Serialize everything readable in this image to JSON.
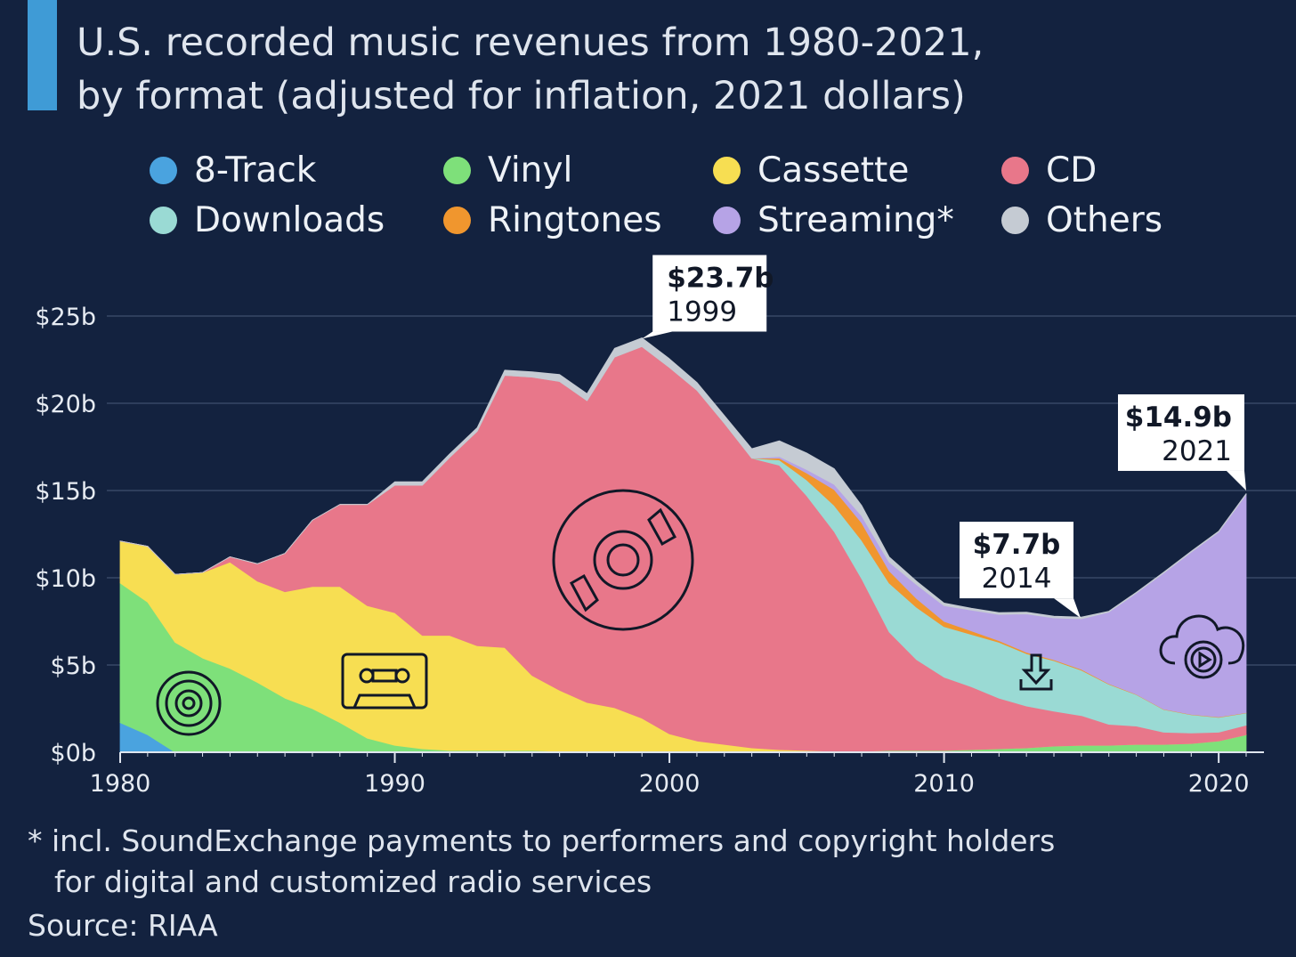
{
  "title": {
    "line1": "U.S. recorded music revenues from 1980-2021,",
    "line2": "by format (adjusted for inflation, 2021 dollars)"
  },
  "legend": [
    {
      "label": "8-Track",
      "color": "#4aa3df"
    },
    {
      "label": "Vinyl",
      "color": "#7ee07a"
    },
    {
      "label": "Cassette",
      "color": "#f7de52"
    },
    {
      "label": "CD",
      "color": "#e8778a"
    },
    {
      "label": "Downloads",
      "color": "#9adad4"
    },
    {
      "label": "Ringtones",
      "color": "#f0962e"
    },
    {
      "label": "Streaming*",
      "color": "#b6a3e6"
    },
    {
      "label": "Others",
      "color": "#c5cbd3"
    }
  ],
  "footnote": {
    "line1": "* incl. SoundExchange payments to performers and copyright holders",
    "line2": "for digital and customized radio services"
  },
  "source": "Source: RIAA",
  "chart_data": {
    "type": "area",
    "stacked": true,
    "x": [
      1980,
      1981,
      1982,
      1983,
      1984,
      1985,
      1986,
      1987,
      1988,
      1989,
      1990,
      1991,
      1992,
      1993,
      1994,
      1995,
      1996,
      1997,
      1998,
      1999,
      2000,
      2001,
      2002,
      2003,
      2004,
      2005,
      2006,
      2007,
      2008,
      2009,
      2010,
      2011,
      2012,
      2013,
      2014,
      2015,
      2016,
      2017,
      2018,
      2019,
      2020,
      2021
    ],
    "xticks": [
      "1980",
      "1990",
      "2000",
      "2010",
      "2020"
    ],
    "yticks": [
      "$0b",
      "$5b",
      "$10b",
      "$15b",
      "$20b",
      "$25b"
    ],
    "ylim": [
      0,
      25
    ],
    "grid": true,
    "legend_position": "top",
    "series": [
      {
        "name": "8-Track",
        "color": "#4aa3df",
        "values": [
          1.7,
          1.0,
          0,
          0,
          0,
          0,
          0,
          0,
          0,
          0,
          0,
          0,
          0,
          0,
          0,
          0,
          0,
          0,
          0,
          0,
          0,
          0,
          0,
          0,
          0,
          0,
          0,
          0,
          0,
          0,
          0,
          0,
          0,
          0,
          0,
          0,
          0,
          0,
          0,
          0,
          0,
          0
        ]
      },
      {
        "name": "Vinyl",
        "color": "#7ee07a",
        "values": [
          8.0,
          7.6,
          6.3,
          5.4,
          4.8,
          4.0,
          3.1,
          2.5,
          1.7,
          0.8,
          0.4,
          0.2,
          0.1,
          0.1,
          0.1,
          0.1,
          0.05,
          0.05,
          0.05,
          0.05,
          0.05,
          0.05,
          0.05,
          0.05,
          0.05,
          0.05,
          0.05,
          0.05,
          0.1,
          0.1,
          0.1,
          0.15,
          0.2,
          0.25,
          0.35,
          0.4,
          0.4,
          0.45,
          0.45,
          0.5,
          0.65,
          1.0
        ]
      },
      {
        "name": "Cassette",
        "color": "#f7de52",
        "values": [
          2.4,
          3.2,
          3.9,
          4.9,
          6.1,
          5.8,
          6.1,
          7.0,
          7.8,
          7.6,
          7.6,
          6.5,
          6.6,
          6.0,
          5.9,
          4.3,
          3.5,
          2.8,
          2.5,
          1.9,
          1.0,
          0.6,
          0.4,
          0.2,
          0.1,
          0.05,
          0,
          0,
          0,
          0,
          0,
          0,
          0,
          0,
          0,
          0,
          0,
          0,
          0,
          0,
          0,
          0
        ]
      },
      {
        "name": "CD",
        "color": "#e8778a",
        "values": [
          0,
          0,
          0,
          0,
          0.3,
          1.0,
          2.2,
          3.8,
          4.7,
          5.8,
          7.3,
          8.6,
          10.2,
          12.3,
          15.6,
          17.1,
          17.7,
          17.3,
          20.1,
          21.3,
          21.0,
          20.1,
          18.4,
          16.6,
          16.3,
          14.6,
          12.6,
          9.9,
          6.8,
          5.2,
          4.2,
          3.6,
          2.9,
          2.4,
          2.0,
          1.7,
          1.2,
          1.05,
          0.7,
          0.6,
          0.5,
          0.55
        ]
      },
      {
        "name": "Downloads",
        "color": "#9adad4",
        "values": [
          0,
          0,
          0,
          0,
          0,
          0,
          0,
          0,
          0,
          0,
          0,
          0,
          0,
          0,
          0,
          0,
          0,
          0,
          0,
          0,
          0,
          0,
          0,
          0,
          0.3,
          0.9,
          1.5,
          2.2,
          2.8,
          3.0,
          2.9,
          3.0,
          3.2,
          3.0,
          2.9,
          2.6,
          2.3,
          1.8,
          1.3,
          1.05,
          0.85,
          0.7
        ]
      },
      {
        "name": "Ringtones",
        "color": "#f0962e",
        "values": [
          0,
          0,
          0,
          0,
          0,
          0,
          0,
          0,
          0,
          0,
          0,
          0,
          0,
          0,
          0,
          0,
          0,
          0,
          0,
          0,
          0,
          0,
          0,
          0,
          0.1,
          0.4,
          0.9,
          1.0,
          0.7,
          0.5,
          0.3,
          0.2,
          0.1,
          0.08,
          0.05,
          0.05,
          0.03,
          0.02,
          0.02,
          0.02,
          0.02,
          0.02
        ]
      },
      {
        "name": "Streaming*",
        "color": "#b6a3e6",
        "values": [
          0,
          0,
          0,
          0,
          0,
          0,
          0,
          0,
          0,
          0,
          0,
          0,
          0,
          0,
          0,
          0,
          0,
          0,
          0,
          0,
          0,
          0,
          0,
          0,
          0.1,
          0.2,
          0.3,
          0.4,
          0.5,
          0.8,
          0.9,
          1.2,
          1.5,
          2.2,
          2.4,
          2.9,
          4.1,
          5.8,
          7.8,
          9.3,
          10.6,
          12.5
        ]
      },
      {
        "name": "Others",
        "color": "#c5cbd3",
        "values": [
          0,
          0,
          0,
          0,
          0,
          0,
          0,
          0,
          0,
          0,
          0.2,
          0.2,
          0.2,
          0.2,
          0.3,
          0.3,
          0.4,
          0.4,
          0.5,
          0.5,
          0.5,
          0.45,
          0.45,
          0.55,
          0.9,
          0.95,
          0.9,
          0.6,
          0.3,
          0.2,
          0.15,
          0.1,
          0.1,
          0.1,
          0.1,
          0.1,
          0.05,
          0.05,
          0.05,
          0.05,
          0.05,
          0.05
        ]
      }
    ],
    "annotations": [
      {
        "value": "$23.7b",
        "year": "1999",
        "x": 1999,
        "y": 23.7
      },
      {
        "value": "$7.7b",
        "year": "2014",
        "x": 2014,
        "y": 7.7
      },
      {
        "value": "$14.9b",
        "year": "2021",
        "x": 2021,
        "y": 14.9
      }
    ]
  }
}
